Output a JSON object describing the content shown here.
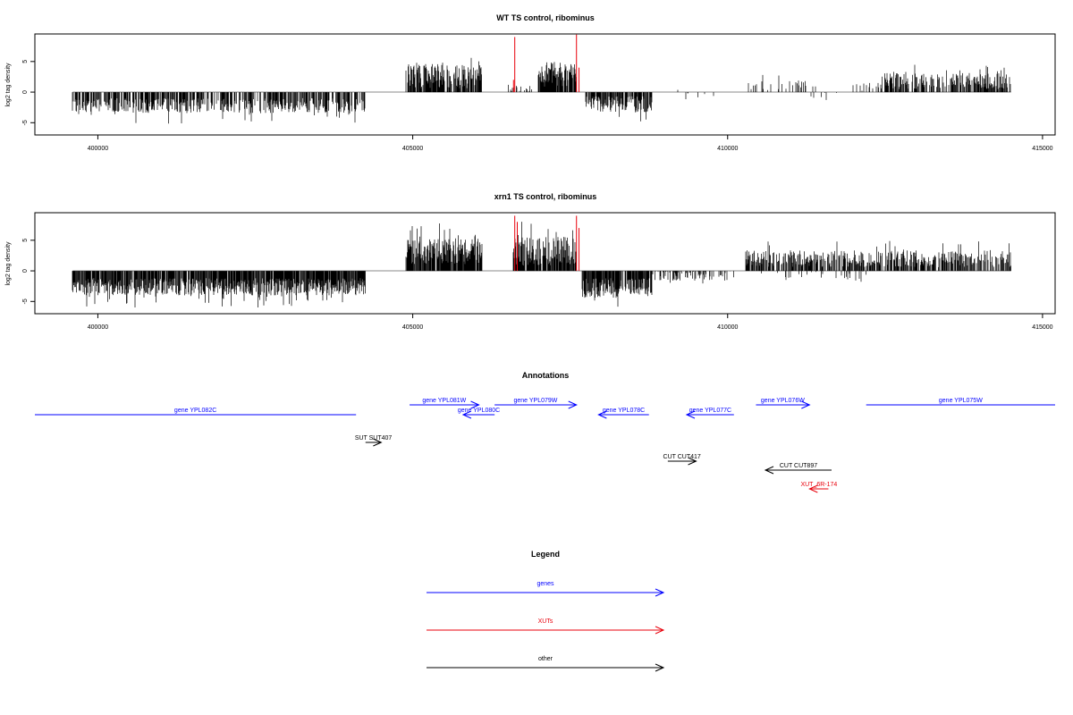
{
  "chart_data": [
    {
      "type": "bar",
      "title": "WT TS control, ribominus",
      "ylabel": "log2 tag density",
      "xlim": [
        399000,
        415200
      ],
      "ylim": [
        -7,
        9.5
      ],
      "xticks": [
        400000,
        405000,
        410000,
        415000
      ],
      "yticks": [
        -5,
        0,
        5
      ],
      "grid": false,
      "bar_color": "#000000",
      "highlight_color": "#e8000b",
      "profile": [
        {
          "start": 399600,
          "end": 404250,
          "level": -2.2,
          "amp": 1.2,
          "density": 0.55
        },
        {
          "start": 404900,
          "end": 406100,
          "level": 2.6,
          "amp": 2.0,
          "density": 0.75
        },
        {
          "start": 406500,
          "end": 406900,
          "level": 0.6,
          "amp": 0.6,
          "density": 0.25
        },
        {
          "start": 407000,
          "end": 407450,
          "level": 3.0,
          "amp": 2.2,
          "density": 0.85
        },
        {
          "start": 407450,
          "end": 407600,
          "level": 3.2,
          "amp": 1.5,
          "density": 0.6
        },
        {
          "start": 407750,
          "end": 408800,
          "level": -2.0,
          "amp": 1.3,
          "density": 0.75
        },
        {
          "start": 409200,
          "end": 410000,
          "level": -0.4,
          "amp": 0.8,
          "density": 0.08
        },
        {
          "start": 410300,
          "end": 411300,
          "level": 1.2,
          "amp": 0.9,
          "density": 0.18
        },
        {
          "start": 411300,
          "end": 411800,
          "level": -0.2,
          "amp": 1.2,
          "density": 0.1
        },
        {
          "start": 412000,
          "end": 412400,
          "level": 0.8,
          "amp": 0.6,
          "density": 0.15
        },
        {
          "start": 412400,
          "end": 414500,
          "level": 1.8,
          "amp": 1.3,
          "density": 0.55
        }
      ],
      "highlights": [
        {
          "x": 406600,
          "height": 2.0
        },
        {
          "x": 406620,
          "height": 9.0
        },
        {
          "x": 407600,
          "height": 9.4
        },
        {
          "x": 407640,
          "height": 4.0
        }
      ],
      "baseline": {
        "x_start": 399600,
        "x_end": 414500
      }
    },
    {
      "type": "bar",
      "title": "xrn1 TS control, ribominus",
      "ylabel": "log2 tag density",
      "xlim": [
        399000,
        415200
      ],
      "ylim": [
        -7,
        9.5
      ],
      "xticks": [
        400000,
        405000,
        410000,
        415000
      ],
      "yticks": [
        -5,
        0,
        5
      ],
      "grid": false,
      "bar_color": "#000000",
      "highlight_color": "#e8000b",
      "profile": [
        {
          "start": 399600,
          "end": 404250,
          "level": -2.6,
          "amp": 1.4,
          "density": 0.85
        },
        {
          "start": 404900,
          "end": 406100,
          "level": 3.2,
          "amp": 2.1,
          "density": 0.85
        },
        {
          "start": 406600,
          "end": 407600,
          "level": 3.2,
          "amp": 2.4,
          "density": 0.85
        },
        {
          "start": 407700,
          "end": 408800,
          "level": -2.8,
          "amp": 1.6,
          "density": 0.85
        },
        {
          "start": 408800,
          "end": 410100,
          "level": -0.8,
          "amp": 0.8,
          "density": 0.35
        },
        {
          "start": 410300,
          "end": 414500,
          "level": 2.0,
          "amp": 1.4,
          "density": 0.6
        },
        {
          "start": 410500,
          "end": 412200,
          "level": -0.8,
          "amp": 0.8,
          "density": 0.12
        }
      ],
      "highlights": [
        {
          "x": 406620,
          "height": 9.0
        },
        {
          "x": 406660,
          "height": 8.0
        },
        {
          "x": 407600,
          "height": 9.0
        },
        {
          "x": 407640,
          "height": 7.0
        }
      ],
      "baseline": {
        "x_start": 399600,
        "x_end": 414500
      }
    }
  ],
  "annotations": {
    "title": "Annotations",
    "xlim": [
      399000,
      415200
    ],
    "colors": {
      "genes": "#0000ff",
      "XUTs": "#e8000b",
      "other": "#000000"
    },
    "features": [
      {
        "label": "gene YPL082C",
        "start": 399000,
        "end": 404100,
        "strand": "-",
        "row": 2,
        "category": "genes",
        "arrow": false
      },
      {
        "label": "gene YPL081W",
        "start": 404950,
        "end": 406050,
        "strand": "+",
        "row": 1,
        "category": "genes",
        "arrow": true
      },
      {
        "label": "gene YPL080C",
        "start": 405800,
        "end": 406300,
        "strand": "-",
        "row": 2,
        "category": "genes",
        "arrow": true
      },
      {
        "label": "gene YPL079W",
        "start": 406300,
        "end": 407600,
        "strand": "+",
        "row": 1,
        "category": "genes",
        "arrow": true
      },
      {
        "label": "gene YPL078C",
        "start": 407950,
        "end": 408750,
        "strand": "-",
        "row": 2,
        "category": "genes",
        "arrow": true
      },
      {
        "label": "gene YPL077C",
        "start": 409350,
        "end": 410100,
        "strand": "-",
        "row": 2,
        "category": "genes",
        "arrow": true
      },
      {
        "label": "gene YPL076W",
        "start": 410450,
        "end": 411300,
        "strand": "+",
        "row": 1,
        "category": "genes",
        "arrow": true
      },
      {
        "label": "gene YPL075W",
        "start": 412200,
        "end": 415200,
        "strand": "+",
        "row": 1,
        "category": "genes",
        "arrow": false
      },
      {
        "label": "SUT SUT407",
        "start": 404250,
        "end": 404500,
        "strand": "+",
        "row": 4,
        "category": "other",
        "arrow": true
      },
      {
        "label": "CUT CUT417",
        "start": 409050,
        "end": 409500,
        "strand": "+",
        "row": 5,
        "category": "other",
        "arrow": true
      },
      {
        "label": "CUT CUT897",
        "start": 410600,
        "end": 411650,
        "strand": "-",
        "row": 6,
        "category": "other",
        "arrow": true
      },
      {
        "label": "XUT_6R-174",
        "start": 411300,
        "end": 411600,
        "strand": "-",
        "row": 7,
        "category": "XUTs",
        "arrow": true
      }
    ]
  },
  "legend": {
    "title": "Legend",
    "items": [
      {
        "label": "genes",
        "category": "genes"
      },
      {
        "label": "XUTs",
        "category": "XUTs"
      },
      {
        "label": "other",
        "category": "other"
      }
    ]
  }
}
